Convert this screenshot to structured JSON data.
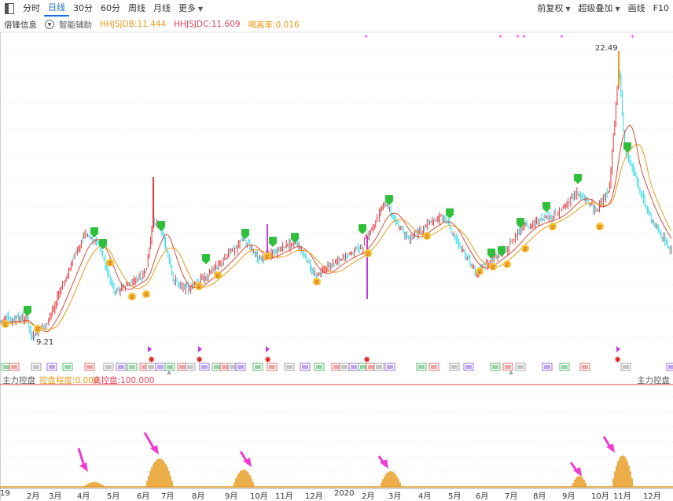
{
  "toolbar": {
    "tabs": [
      "分时",
      "日线",
      "30分",
      "60分",
      "周线",
      "月线",
      "更多"
    ],
    "active_tab": "日线",
    "right": [
      "前复权",
      "超级叠加",
      "画线",
      "F10"
    ]
  },
  "info": {
    "title": "倍锋信息",
    "assist": "智能辅助",
    "ind_a": "HHJSJDB:11.444",
    "ind_b": "HHJSJDC:11.609",
    "ind_c": "喝离率:0.016"
  },
  "price_labels": {
    "high": "22.49",
    "low": "9.21"
  },
  "sub": {
    "title": "主力控盘",
    "ind1": "控盘程度:0.000",
    "ind2": "高控盘:100.000",
    "right": "主力控盘"
  },
  "axis": [
    "19",
    "2月",
    "3月",
    "4月",
    "5月",
    "6月",
    "7月",
    "8月",
    "9月",
    "10月",
    "11月",
    "12月",
    "2020",
    "2月",
    "3月",
    "4月",
    "5月",
    "6月",
    "7月",
    "8月",
    "9月",
    "10月",
    "11月",
    "12月"
  ],
  "colors": {
    "up": "#e8363b",
    "down": "#2ed8e6",
    "ma1": "#d84a3a",
    "ma2": "#e89a1a",
    "accent": "#1a6fd6",
    "star": "#f03ad0"
  }
}
